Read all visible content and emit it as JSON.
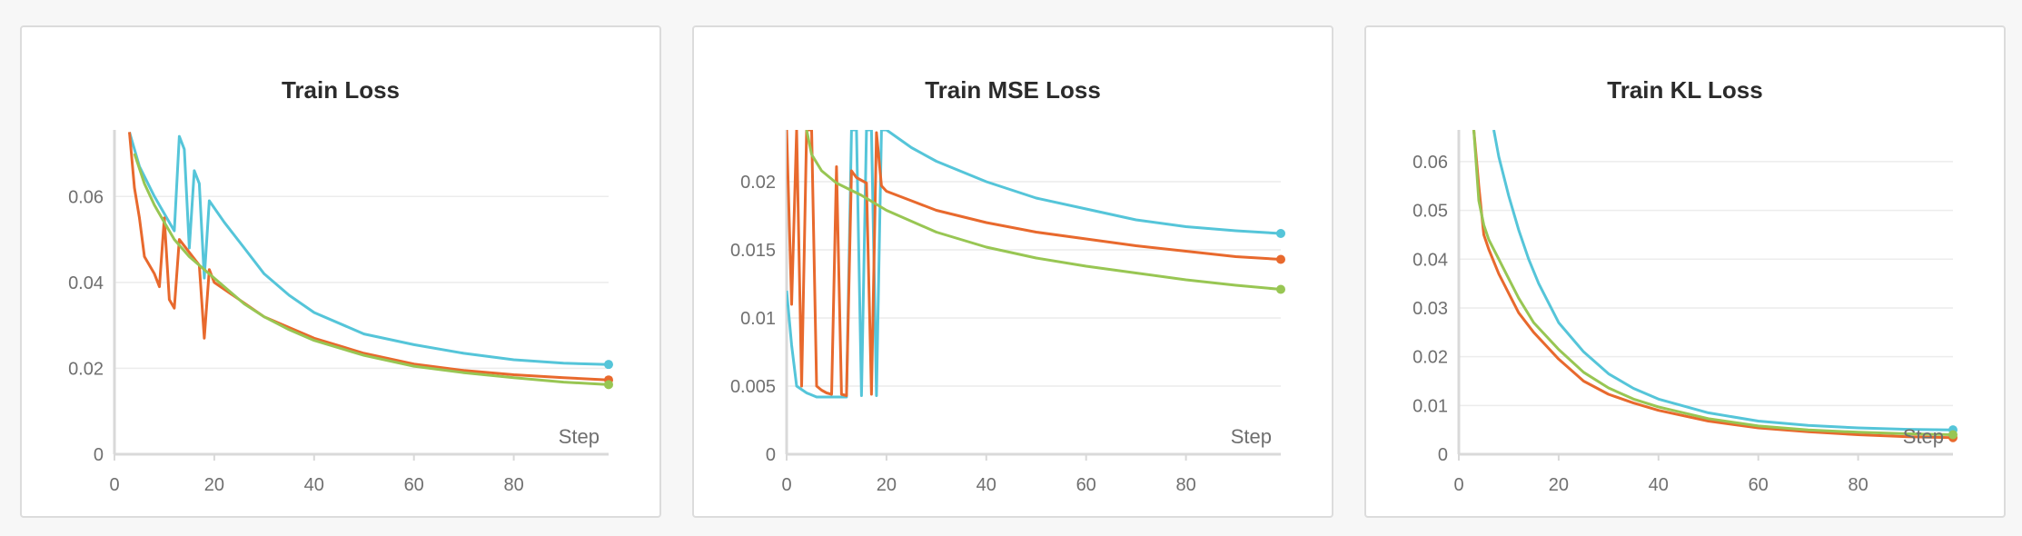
{
  "colors": {
    "blue": "#55c5d9",
    "orange": "#e8692d",
    "green": "#98c653",
    "grid": "#ececec",
    "axis": "#d9d9d9",
    "text": "#6f6f6f"
  },
  "chart_data": [
    {
      "type": "line",
      "title": "Train Loss",
      "xlabel": "Step",
      "ylabel": "",
      "xlim": [
        0,
        99
      ],
      "ylim": [
        0,
        0.0755
      ],
      "xticks": [
        0,
        20,
        40,
        60,
        80
      ],
      "yticks": [
        0,
        0.02,
        0.04,
        0.06
      ],
      "ytick_labels": [
        "0",
        "0.02",
        "0.04",
        "0.06"
      ],
      "grid": true,
      "series": [
        {
          "color": "#55c5d9",
          "end_marker": true,
          "x": [
            3,
            5,
            8,
            11,
            12,
            13,
            14,
            15,
            16,
            17,
            18,
            19,
            22,
            26,
            30,
            35,
            40,
            50,
            60,
            70,
            80,
            90,
            99
          ],
          "y": [
            0.075,
            0.067,
            0.06,
            0.054,
            0.052,
            0.074,
            0.071,
            0.048,
            0.066,
            0.063,
            0.041,
            0.059,
            0.054,
            0.048,
            0.042,
            0.037,
            0.033,
            0.028,
            0.0255,
            0.0235,
            0.022,
            0.0212,
            0.0209
          ]
        },
        {
          "color": "#e8692d",
          "end_marker": true,
          "x": [
            3,
            4,
            5,
            6,
            8,
            9,
            10,
            11,
            12,
            13,
            15,
            17,
            18,
            19,
            20,
            25,
            30,
            40,
            50,
            60,
            70,
            80,
            90,
            99
          ],
          "y": [
            0.075,
            0.062,
            0.055,
            0.046,
            0.042,
            0.039,
            0.055,
            0.036,
            0.034,
            0.05,
            0.047,
            0.044,
            0.027,
            0.043,
            0.04,
            0.036,
            0.032,
            0.027,
            0.0235,
            0.021,
            0.0195,
            0.0185,
            0.0178,
            0.0173
          ]
        },
        {
          "color": "#98c653",
          "end_marker": true,
          "x": [
            4,
            6,
            8,
            10,
            12,
            15,
            18,
            22,
            26,
            30,
            35,
            40,
            50,
            60,
            70,
            80,
            90,
            99
          ],
          "y": [
            0.07,
            0.063,
            0.058,
            0.054,
            0.05,
            0.046,
            0.043,
            0.039,
            0.035,
            0.032,
            0.029,
            0.0265,
            0.023,
            0.0205,
            0.019,
            0.0178,
            0.0168,
            0.0162
          ]
        }
      ]
    },
    {
      "type": "line",
      "title": "Train MSE Loss",
      "xlabel": "Step",
      "ylabel": "",
      "xlim": [
        0,
        99
      ],
      "ylim": [
        0,
        0.0238
      ],
      "xticks": [
        0,
        20,
        40,
        60,
        80
      ],
      "yticks": [
        0,
        0.005,
        0.01,
        0.015,
        0.02
      ],
      "ytick_labels": [
        "0",
        "0.005",
        "0.01",
        "0.015",
        "0.02"
      ],
      "grid": true,
      "series": [
        {
          "color": "#55c5d9",
          "end_marker": true,
          "x": [
            0,
            1,
            2,
            4,
            6,
            8,
            10,
            12,
            13,
            14,
            15,
            16,
            17,
            18,
            19,
            20,
            25,
            30,
            40,
            50,
            60,
            70,
            80,
            90,
            99
          ],
          "y": [
            0.012,
            0.008,
            0.005,
            0.0045,
            0.0042,
            0.0042,
            0.0042,
            0.0042,
            0.0238,
            0.0238,
            0.0043,
            0.0238,
            0.0238,
            0.0043,
            0.0238,
            0.0238,
            0.0225,
            0.0215,
            0.02,
            0.0188,
            0.018,
            0.0172,
            0.0167,
            0.0164,
            0.0162
          ]
        },
        {
          "color": "#e8692d",
          "end_marker": true,
          "x": [
            0,
            1,
            2,
            3,
            4,
            5,
            6,
            7,
            8,
            9,
            10,
            11,
            12,
            13,
            14,
            16,
            17,
            18,
            19,
            20,
            25,
            30,
            40,
            50,
            60,
            70,
            80,
            90,
            99
          ],
          "y": [
            0.0238,
            0.011,
            0.0238,
            0.005,
            0.0238,
            0.0238,
            0.005,
            0.0047,
            0.0045,
            0.0044,
            0.0211,
            0.0044,
            0.0043,
            0.0208,
            0.0203,
            0.0199,
            0.0044,
            0.0236,
            0.0197,
            0.0193,
            0.0186,
            0.0179,
            0.017,
            0.0163,
            0.0158,
            0.0153,
            0.0149,
            0.0145,
            0.0143
          ]
        },
        {
          "color": "#98c653",
          "end_marker": true,
          "x": [
            4,
            5,
            7,
            10,
            15,
            20,
            30,
            40,
            50,
            60,
            70,
            80,
            90,
            99
          ],
          "y": [
            0.0238,
            0.022,
            0.0208,
            0.0199,
            0.019,
            0.0179,
            0.0163,
            0.0152,
            0.0144,
            0.0138,
            0.0133,
            0.0128,
            0.0124,
            0.0121
          ]
        }
      ]
    },
    {
      "type": "line",
      "title": "Train KL Loss",
      "xlabel": "Step",
      "ylabel": "",
      "xlim": [
        0,
        99
      ],
      "ylim": [
        0,
        0.0665
      ],
      "xticks": [
        0,
        20,
        40,
        60,
        80
      ],
      "yticks": [
        0,
        0.01,
        0.02,
        0.03,
        0.04,
        0.05,
        0.06
      ],
      "ytick_labels": [
        "0",
        "0.01",
        "0.02",
        "0.03",
        "0.04",
        "0.05",
        "0.06"
      ],
      "grid": true,
      "series": [
        {
          "color": "#55c5d9",
          "end_marker": true,
          "x": [
            7,
            8,
            10,
            12,
            14,
            16,
            18,
            20,
            25,
            30,
            35,
            40,
            50,
            60,
            70,
            80,
            90,
            99
          ],
          "y": [
            0.0665,
            0.061,
            0.053,
            0.046,
            0.04,
            0.035,
            0.031,
            0.027,
            0.021,
            0.0165,
            0.0135,
            0.0113,
            0.0085,
            0.0068,
            0.0059,
            0.0054,
            0.0051,
            0.005
          ]
        },
        {
          "color": "#e8692d",
          "end_marker": true,
          "x": [
            3,
            4,
            5,
            6,
            8,
            10,
            12,
            15,
            20,
            25,
            30,
            35,
            40,
            50,
            60,
            70,
            80,
            90,
            99
          ],
          "y": [
            0.0665,
            0.055,
            0.045,
            0.042,
            0.037,
            0.033,
            0.029,
            0.025,
            0.0195,
            0.015,
            0.0123,
            0.0105,
            0.009,
            0.0068,
            0.0054,
            0.0046,
            0.004,
            0.0036,
            0.0034
          ]
        },
        {
          "color": "#98c653",
          "end_marker": true,
          "x": [
            3,
            4,
            5,
            6,
            8,
            10,
            12,
            15,
            20,
            25,
            30,
            35,
            40,
            50,
            60,
            70,
            80,
            90,
            99
          ],
          "y": [
            0.0665,
            0.052,
            0.047,
            0.044,
            0.04,
            0.036,
            0.032,
            0.027,
            0.0215,
            0.0168,
            0.0136,
            0.0113,
            0.0097,
            0.0073,
            0.0058,
            0.005,
            0.0045,
            0.0042,
            0.004
          ]
        }
      ]
    }
  ]
}
